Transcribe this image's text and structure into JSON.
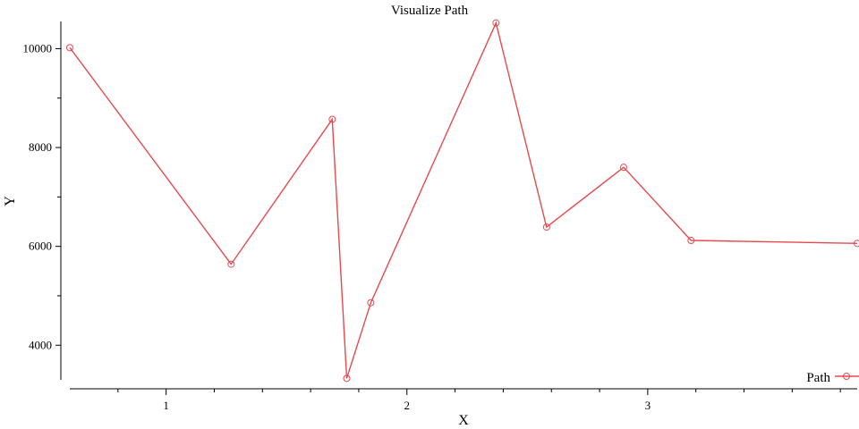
{
  "chart_data": {
    "type": "line",
    "title": "Visualize Path",
    "xlabel": "X",
    "ylabel": "Y",
    "xlim": [
      0.6,
      3.87
    ],
    "ylim": [
      3300,
      10550
    ],
    "x_ticks": [
      1,
      2,
      3
    ],
    "x_tick_labels": [
      "1",
      "2",
      "3"
    ],
    "x_minor_ticks": [
      0.8,
      1.2,
      1.4,
      1.6,
      1.8,
      2.2,
      2.4,
      2.6,
      2.8,
      3.2,
      3.4,
      3.6,
      3.8
    ],
    "y_ticks": [
      4000,
      6000,
      8000,
      10000
    ],
    "y_tick_labels": [
      "4000",
      "6000",
      "8000",
      "10000"
    ],
    "y_minor_ticks": [
      5000,
      7000,
      9000
    ],
    "grid": false,
    "legend_position": "bottom-right",
    "series": [
      {
        "name": "Path",
        "color": "#e8494f",
        "marker": "open-circle",
        "x": [
          0.6,
          1.27,
          1.69,
          1.75,
          1.85,
          2.37,
          2.58,
          2.9,
          3.18,
          3.87
        ],
        "y": [
          10020,
          5640,
          8570,
          3330,
          4860,
          10520,
          6390,
          7600,
          6120,
          6060
        ]
      }
    ]
  }
}
